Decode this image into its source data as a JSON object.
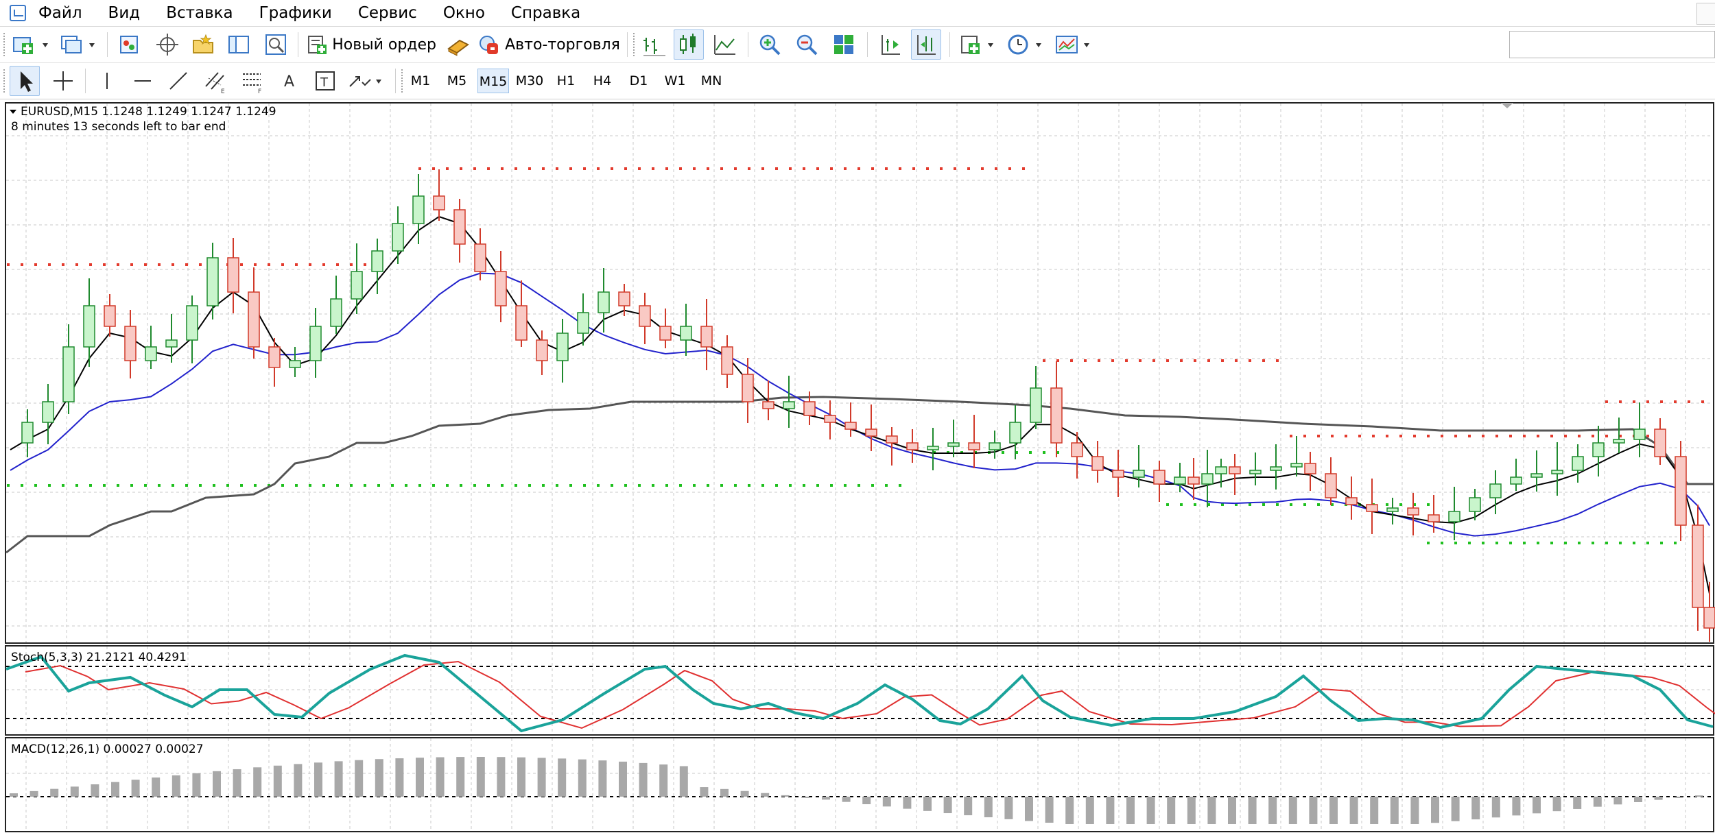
{
  "menu": {
    "items": [
      "Файл",
      "Вид",
      "Вставка",
      "Графики",
      "Сервис",
      "Окно",
      "Справка"
    ]
  },
  "toolbar": {
    "new_order_label": "Новый ордер",
    "auto_trading_label": "Авто-торговля",
    "search": {
      "value": "",
      "placeholder": ""
    }
  },
  "timeframes": {
    "items": [
      "M1",
      "M5",
      "M15",
      "M30",
      "H1",
      "H4",
      "D1",
      "W1",
      "MN"
    ],
    "active": "M15"
  },
  "chart": {
    "symbol_line": "EURUSD,M15  1.1248 1.1249 1.1247 1.1249",
    "timer_text": "8 minutes 13 seconds left to bar end",
    "colors": {
      "bull": "#c9f5cc",
      "bear": "#f9c9c4",
      "bull_border": "#1f8a2e",
      "bear_border": "#d13a2a",
      "ma_fast": "#000000",
      "ma_slow": "#2222cc",
      "ma_long": "#555555",
      "fractal_up": "#e33b2e",
      "fractal_down": "#1fc01f",
      "grid": "#c8c8c8"
    }
  },
  "stochastic": {
    "label": "Stoch(5,3,3) 21.2121 40.4291",
    "colors": {
      "main": "#1aa39a",
      "signal": "#e03030"
    }
  },
  "macd": {
    "label": "MACD(12,26,1) 0.00027 0.00027",
    "colors": {
      "hist": "#a8a8a8"
    }
  },
  "chart_data": {
    "type": "candlestick",
    "symbol": "EURUSD",
    "timeframe": "M15",
    "ohlc_current": {
      "open": 1.1248,
      "high": 1.1249,
      "low": 1.1247,
      "close": 1.1249
    }
  }
}
